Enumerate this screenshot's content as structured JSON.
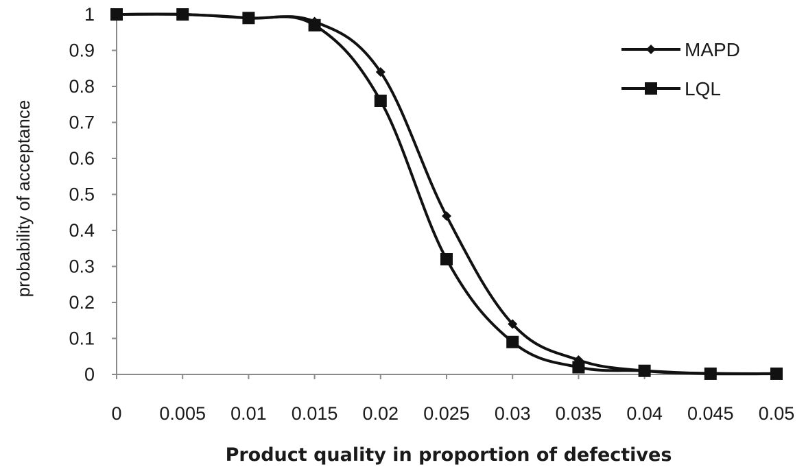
{
  "chart_data": {
    "type": "line",
    "title": "",
    "xlabel": "Product quality in proportion of defectives",
    "ylabel": "probability of acceptance",
    "x": [
      0,
      0.005,
      0.01,
      0.015,
      0.02,
      0.025,
      0.03,
      0.035,
      0.04,
      0.045,
      0.05
    ],
    "x_tick_labels": [
      "0",
      "0.005",
      "0.01",
      "0.015",
      "0.02",
      "0.025",
      "0.03",
      "0.035",
      "0.04",
      "0.045",
      "0.05"
    ],
    "y_tick_labels": [
      "0",
      "0.1",
      "0.2",
      "0.3",
      "0.4",
      "0.5",
      "0.6",
      "0.7",
      "0.8",
      "0.9",
      "1"
    ],
    "xlim": [
      0,
      0.05
    ],
    "ylim": [
      0,
      1
    ],
    "grid": false,
    "legend_position": "top-right",
    "series": [
      {
        "name": "MAPD",
        "marker": "diamond",
        "color": "#111111",
        "values": [
          1.0,
          1.0,
          0.99,
          0.98,
          0.84,
          0.44,
          0.14,
          0.04,
          0.01,
          0.003,
          0.002
        ]
      },
      {
        "name": "LQL",
        "marker": "square",
        "color": "#111111",
        "values": [
          1.0,
          1.0,
          0.99,
          0.97,
          0.76,
          0.32,
          0.09,
          0.02,
          0.01,
          0.002,
          0.002
        ]
      }
    ]
  }
}
